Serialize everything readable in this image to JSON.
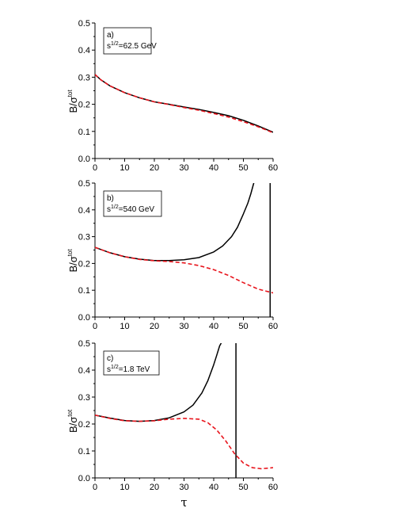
{
  "chart_data": [
    {
      "type": "line",
      "panel_label": "a)",
      "annotation": {
        "base": "s",
        "sup": "1/2",
        "rest": "=62.5 GeV"
      },
      "ylabel": {
        "main": "B/σ",
        "sup": "tot"
      },
      "xlabel": "",
      "xlim": [
        0,
        60
      ],
      "ylim": [
        0,
        0.5
      ],
      "xticks": [
        "0",
        "10",
        "20",
        "30",
        "40",
        "50",
        "60"
      ],
      "yticks": [
        "0.0",
        "0.1",
        "0.2",
        "0.3",
        "0.4",
        "0.5"
      ],
      "series": [
        {
          "style": "solid",
          "color": "#000000",
          "x": [
            0,
            2,
            5,
            10,
            15,
            20,
            25,
            30,
            35,
            40,
            45,
            50,
            55,
            60
          ],
          "y": [
            0.31,
            0.29,
            0.268,
            0.243,
            0.224,
            0.209,
            0.2,
            0.19,
            0.181,
            0.17,
            0.158,
            0.141,
            0.12,
            0.097
          ]
        },
        {
          "style": "dashed",
          "color": "#e8141c",
          "x": [
            0,
            2,
            5,
            10,
            15,
            20,
            25,
            30,
            35,
            40,
            45,
            50,
            55,
            60
          ],
          "y": [
            0.31,
            0.29,
            0.268,
            0.243,
            0.224,
            0.209,
            0.199,
            0.188,
            0.178,
            0.166,
            0.153,
            0.136,
            0.117,
            0.095
          ]
        }
      ]
    },
    {
      "type": "line",
      "panel_label": "b)",
      "annotation": {
        "base": "s",
        "sup": "1/2",
        "rest": "=540 GeV"
      },
      "ylabel": {
        "main": "B/σ",
        "sup": "tot"
      },
      "xlabel": "",
      "xlim": [
        0,
        60
      ],
      "ylim": [
        0,
        0.5
      ],
      "xticks": [
        "0",
        "10",
        "20",
        "30",
        "40",
        "50",
        "60"
      ],
      "yticks": [
        "0.0",
        "0.1",
        "0.2",
        "0.3",
        "0.4",
        "0.5"
      ],
      "series": [
        {
          "style": "solid",
          "color": "#000000",
          "x": [
            0,
            5,
            10,
            15,
            20,
            25,
            30,
            35,
            40,
            43,
            46,
            48,
            50,
            51.5,
            52.5,
            53.5
          ],
          "y": [
            0.26,
            0.24,
            0.225,
            0.216,
            0.211,
            0.211,
            0.214,
            0.222,
            0.243,
            0.265,
            0.3,
            0.335,
            0.385,
            0.425,
            0.46,
            0.5
          ]
        },
        {
          "style": "solid",
          "color": "#000000",
          "x": [
            59,
            59
          ],
          "y": [
            0,
            0.5
          ]
        },
        {
          "style": "dashed",
          "color": "#e8141c",
          "x": [
            0,
            5,
            10,
            15,
            20,
            25,
            30,
            35,
            40,
            45,
            50,
            55,
            60
          ],
          "y": [
            0.26,
            0.24,
            0.225,
            0.215,
            0.21,
            0.207,
            0.202,
            0.192,
            0.177,
            0.155,
            0.128,
            0.104,
            0.09
          ]
        }
      ]
    },
    {
      "type": "line",
      "panel_label": "c)",
      "annotation": {
        "base": "s",
        "sup": "1/2",
        "rest": "=1.8 TeV"
      },
      "ylabel": {
        "main": "B/σ",
        "sup": "tot"
      },
      "xlabel": "τ",
      "xlim": [
        0,
        60
      ],
      "ylim": [
        0,
        0.5
      ],
      "xticks": [
        "0",
        "10",
        "20",
        "30",
        "40",
        "50",
        "60"
      ],
      "yticks": [
        "0.0",
        "0.1",
        "0.2",
        "0.3",
        "0.4",
        "0.5"
      ],
      "series": [
        {
          "style": "solid",
          "color": "#000000",
          "x": [
            0,
            5,
            10,
            15,
            20,
            25,
            30,
            33,
            36,
            38,
            40,
            41,
            42,
            42.5
          ],
          "y": [
            0.233,
            0.222,
            0.213,
            0.21,
            0.213,
            0.223,
            0.245,
            0.27,
            0.315,
            0.36,
            0.42,
            0.455,
            0.49,
            0.5
          ]
        },
        {
          "style": "solid",
          "color": "#000000",
          "x": [
            47.5,
            47.5
          ],
          "y": [
            0,
            0.5
          ]
        },
        {
          "style": "dashed",
          "color": "#e8141c",
          "x": [
            0,
            5,
            10,
            15,
            20,
            25,
            30,
            35,
            38,
            41,
            44,
            47,
            50,
            53,
            56,
            58,
            60
          ],
          "y": [
            0.233,
            0.221,
            0.212,
            0.21,
            0.212,
            0.218,
            0.221,
            0.218,
            0.205,
            0.178,
            0.138,
            0.09,
            0.055,
            0.038,
            0.034,
            0.036,
            0.038
          ]
        }
      ]
    }
  ]
}
